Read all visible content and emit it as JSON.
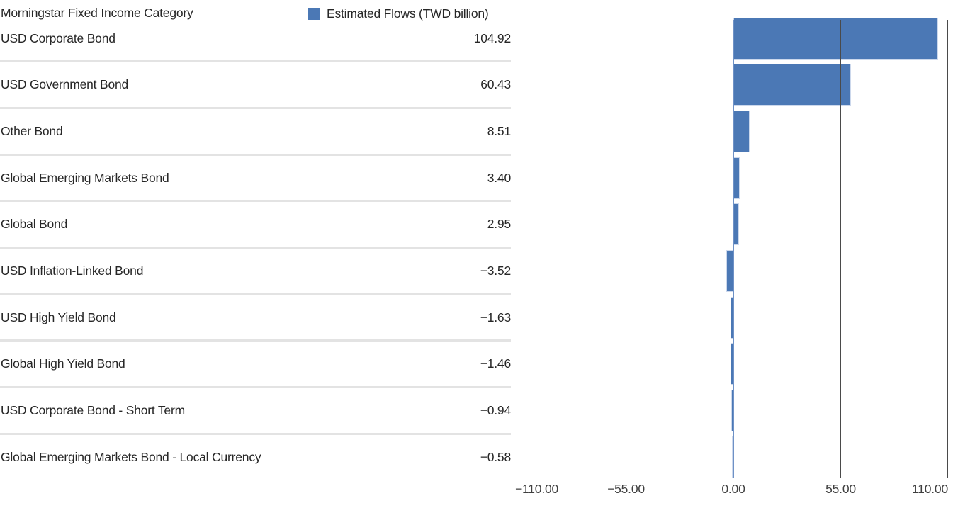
{
  "header": {
    "category_column_label": "Morningstar Fixed Income Category",
    "legend": {
      "label": "Estimated Flows (TWD billion)",
      "swatch_color": "#4b78b5"
    }
  },
  "chart_data": {
    "type": "bar",
    "orientation": "horizontal",
    "title": "Estimated Flows (TWD billion)",
    "series_name": "Estimated Flows (TWD billion)",
    "categories": [
      "USD Corporate Bond",
      "USD Government Bond",
      "Other Bond",
      "Global Emerging Markets Bond",
      "Global Bond",
      "USD Inflation-Linked Bond",
      "USD High Yield Bond",
      "Global High Yield Bond",
      "USD Corporate Bond - Short Term",
      "Global Emerging Markets Bond - Local Currency"
    ],
    "values": [
      104.92,
      60.43,
      8.51,
      3.4,
      2.95,
      -3.52,
      -1.63,
      -1.46,
      -0.94,
      -0.58
    ],
    "value_labels": [
      "104.92",
      "60.43",
      "8.51",
      "3.40",
      "2.95",
      "−3.52",
      "−1.63",
      "−1.46",
      "−0.94",
      "−0.58"
    ],
    "x_axis": {
      "range": [
        -110,
        110
      ],
      "ticks": [
        -110,
        -55,
        0,
        55,
        110
      ],
      "tick_labels": [
        "−110.00",
        "−55.00",
        "0.00",
        "55.00",
        "110.00"
      ]
    },
    "grid": true,
    "legend_position": "top",
    "colors": {
      "bar": "#4b78b5",
      "bar_outline": "#ccd8ec",
      "zero_line": "#6e91c6",
      "gridline": "#4a4a4a",
      "row_separator": "#e3e3e3",
      "text": "#272727"
    }
  }
}
